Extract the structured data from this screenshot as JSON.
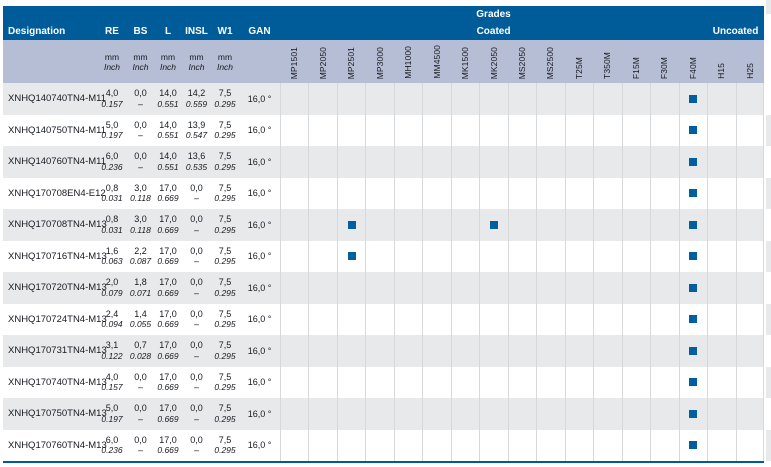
{
  "colors": {
    "header_blue": "#005c99",
    "subheader_band": "#b6bed5",
    "row_stripe": "#e8e9eb",
    "gridline": "#d7d8da",
    "grade_mark": "#005f9e",
    "text_dark": "#16191f",
    "header_text": "#ffffff"
  },
  "table": {
    "header": {
      "designation_label": "Designation",
      "numeric_columns": [
        "RE",
        "BS",
        "L",
        "INSL",
        "W1"
      ],
      "gan_label": "GAN",
      "grades_label": "Grades",
      "coated_label": "Coated",
      "uncoated_label": "Uncoated",
      "unit_mm": "mm",
      "unit_inch": "Inch",
      "coated_grades": [
        "MP1501",
        "MP2050",
        "MP2501",
        "MP3000",
        "MH1000",
        "MM4500",
        "MK1500",
        "MK2050",
        "MS2050",
        "MS2500",
        "T25M",
        "T350M",
        "F15M",
        "F30M",
        "F40M"
      ],
      "uncoated_grades": [
        "H15",
        "H25"
      ]
    },
    "rows": [
      {
        "designation": "XNHQ140740TN4-M11",
        "re": {
          "mm": "4,0",
          "inch": "0.157"
        },
        "bs": {
          "mm": "0,0",
          "inch": "–"
        },
        "l": {
          "mm": "14,0",
          "inch": "0.551"
        },
        "insl": {
          "mm": "14,2",
          "inch": "0.559"
        },
        "w1": {
          "mm": "7,5",
          "inch": "0.295"
        },
        "gan": "16,0 °",
        "grades": [
          "F40M"
        ]
      },
      {
        "designation": "XNHQ140750TN4-M11",
        "re": {
          "mm": "5,0",
          "inch": "0.197"
        },
        "bs": {
          "mm": "0,0",
          "inch": "–"
        },
        "l": {
          "mm": "14,0",
          "inch": "0.551"
        },
        "insl": {
          "mm": "13,9",
          "inch": "0.547"
        },
        "w1": {
          "mm": "7,5",
          "inch": "0.295"
        },
        "gan": "16,0 °",
        "grades": [
          "F40M"
        ]
      },
      {
        "designation": "XNHQ140760TN4-M11",
        "re": {
          "mm": "6,0",
          "inch": "0.236"
        },
        "bs": {
          "mm": "0,0",
          "inch": "–"
        },
        "l": {
          "mm": "14,0",
          "inch": "0.551"
        },
        "insl": {
          "mm": "13,6",
          "inch": "0.535"
        },
        "w1": {
          "mm": "7,5",
          "inch": "0.295"
        },
        "gan": "16,0 °",
        "grades": [
          "F40M"
        ]
      },
      {
        "designation": "XNHQ170708EN4-E12",
        "re": {
          "mm": "0,8",
          "inch": "0.031"
        },
        "bs": {
          "mm": "3,0",
          "inch": "0.118"
        },
        "l": {
          "mm": "17,0",
          "inch": "0.669"
        },
        "insl": {
          "mm": "0,0",
          "inch": "–"
        },
        "w1": {
          "mm": "7,5",
          "inch": "0.295"
        },
        "gan": "16,0 °",
        "grades": [
          "F40M"
        ]
      },
      {
        "designation": "XNHQ170708TN4-M13",
        "re": {
          "mm": "0,8",
          "inch": "0.031"
        },
        "bs": {
          "mm": "3,0",
          "inch": "0.118"
        },
        "l": {
          "mm": "17,0",
          "inch": "0.669"
        },
        "insl": {
          "mm": "0,0",
          "inch": "–"
        },
        "w1": {
          "mm": "7,5",
          "inch": "0.295"
        },
        "gan": "16,0 °",
        "grades": [
          "MP2501",
          "MK2050",
          "F40M"
        ]
      },
      {
        "designation": "XNHQ170716TN4-M13",
        "re": {
          "mm": "1,6",
          "inch": "0.063"
        },
        "bs": {
          "mm": "2,2",
          "inch": "0.087"
        },
        "l": {
          "mm": "17,0",
          "inch": "0.669"
        },
        "insl": {
          "mm": "0,0",
          "inch": "–"
        },
        "w1": {
          "mm": "7,5",
          "inch": "0.295"
        },
        "gan": "16,0 °",
        "grades": [
          "MP2501",
          "F40M"
        ]
      },
      {
        "designation": "XNHQ170720TN4-M13",
        "re": {
          "mm": "2,0",
          "inch": "0.079"
        },
        "bs": {
          "mm": "1,8",
          "inch": "0.071"
        },
        "l": {
          "mm": "17,0",
          "inch": "0.669"
        },
        "insl": {
          "mm": "0,0",
          "inch": "–"
        },
        "w1": {
          "mm": "7,5",
          "inch": "0.295"
        },
        "gan": "16,0 °",
        "grades": [
          "F40M"
        ]
      },
      {
        "designation": "XNHQ170724TN4-M13",
        "re": {
          "mm": "2,4",
          "inch": "0.094"
        },
        "bs": {
          "mm": "1,4",
          "inch": "0.055"
        },
        "l": {
          "mm": "17,0",
          "inch": "0.669"
        },
        "insl": {
          "mm": "0,0",
          "inch": "–"
        },
        "w1": {
          "mm": "7,5",
          "inch": "0.295"
        },
        "gan": "16,0 °",
        "grades": [
          "F40M"
        ]
      },
      {
        "designation": "XNHQ170731TN4-M13",
        "re": {
          "mm": "3,1",
          "inch": "0.122"
        },
        "bs": {
          "mm": "0,7",
          "inch": "0.028"
        },
        "l": {
          "mm": "17,0",
          "inch": "0.669"
        },
        "insl": {
          "mm": "0,0",
          "inch": "–"
        },
        "w1": {
          "mm": "7,5",
          "inch": "0.295"
        },
        "gan": "16,0 °",
        "grades": [
          "F40M"
        ]
      },
      {
        "designation": "XNHQ170740TN4-M13",
        "re": {
          "mm": "4,0",
          "inch": "0.157"
        },
        "bs": {
          "mm": "0,0",
          "inch": "–"
        },
        "l": {
          "mm": "17,0",
          "inch": "0.669"
        },
        "insl": {
          "mm": "0,0",
          "inch": "–"
        },
        "w1": {
          "mm": "7,5",
          "inch": "0.295"
        },
        "gan": "16,0 °",
        "grades": [
          "F40M"
        ]
      },
      {
        "designation": "XNHQ170750TN4-M13",
        "re": {
          "mm": "5,0",
          "inch": "0.197"
        },
        "bs": {
          "mm": "0,0",
          "inch": "–"
        },
        "l": {
          "mm": "17,0",
          "inch": "0.669"
        },
        "insl": {
          "mm": "0,0",
          "inch": "–"
        },
        "w1": {
          "mm": "7,5",
          "inch": "0.295"
        },
        "gan": "16,0 °",
        "grades": [
          "F40M"
        ]
      },
      {
        "designation": "XNHQ170760TN4-M13",
        "re": {
          "mm": "6,0",
          "inch": "0.236"
        },
        "bs": {
          "mm": "0,0",
          "inch": "–"
        },
        "l": {
          "mm": "17,0",
          "inch": "0.669"
        },
        "insl": {
          "mm": "0,0",
          "inch": "–"
        },
        "w1": {
          "mm": "7,5",
          "inch": "0.295"
        },
        "gan": "16,0 °",
        "grades": [
          "F40M"
        ]
      }
    ]
  }
}
